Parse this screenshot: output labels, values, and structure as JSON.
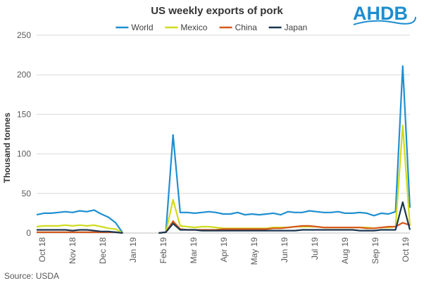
{
  "logo": {
    "text": "AHDB",
    "color": "#1d8dd0"
  },
  "source": "Source: USDA",
  "chart_data": {
    "type": "line",
    "title": "US weekly exports of pork",
    "ylabel": "Thousand tonnes",
    "xlabel": "",
    "ylim": [
      0,
      250
    ],
    "yticks": [
      0,
      50,
      100,
      150,
      200,
      250
    ],
    "grid": true,
    "legend": "top",
    "x_tick_labels": [
      "Oct 18",
      "Nov 18",
      "Dec 18",
      "Jan 19",
      "Feb 19",
      "Mar 19",
      "Apr 19",
      "May 19",
      "Jun 19",
      "Jul 19",
      "Aug 19",
      "Sep 19",
      "Oct 19"
    ],
    "series": [
      {
        "name": "World",
        "color": "#1f8fd1",
        "values": [
          23,
          25,
          25,
          26,
          27,
          26,
          28,
          27,
          29,
          24,
          20,
          13,
          0,
          null,
          null,
          null,
          null,
          0,
          1,
          124,
          26,
          26,
          25,
          26,
          27,
          26,
          24,
          24,
          26,
          23,
          24,
          23,
          24,
          25,
          23,
          27,
          26,
          26,
          28,
          27,
          26,
          26,
          27,
          25,
          25,
          26,
          25,
          22,
          25,
          24,
          27,
          211,
          32
        ]
      },
      {
        "name": "Mexico",
        "color": "#cfdc1e",
        "values": [
          8,
          9,
          9,
          9,
          10,
          9,
          10,
          9,
          10,
          8,
          6,
          5,
          0,
          null,
          null,
          null,
          null,
          0,
          1,
          42,
          9,
          8,
          7,
          8,
          8,
          7,
          6,
          6,
          6,
          6,
          6,
          6,
          6,
          7,
          7,
          7,
          8,
          8,
          8,
          8,
          7,
          7,
          7,
          7,
          7,
          7,
          7,
          6,
          7,
          7,
          8,
          136,
          9
        ]
      },
      {
        "name": "China",
        "color": "#d65a1d",
        "values": [
          1,
          1,
          1,
          1,
          1,
          1,
          1,
          1,
          1,
          1,
          1,
          1,
          0,
          null,
          null,
          null,
          null,
          0,
          1,
          15,
          5,
          4,
          4,
          4,
          4,
          4,
          5,
          5,
          5,
          5,
          5,
          5,
          5,
          6,
          6,
          7,
          8,
          9,
          9,
          8,
          7,
          7,
          7,
          7,
          7,
          7,
          6,
          6,
          7,
          8,
          8,
          13,
          10
        ]
      },
      {
        "name": "Japan",
        "color": "#1b3650",
        "values": [
          4,
          4,
          4,
          4,
          4,
          3,
          4,
          4,
          3,
          2,
          2,
          1,
          0,
          null,
          null,
          null,
          null,
          0,
          1,
          12,
          4,
          4,
          4,
          3,
          3,
          3,
          3,
          3,
          3,
          3,
          3,
          3,
          3,
          3,
          3,
          3,
          3,
          4,
          4,
          4,
          4,
          4,
          4,
          4,
          4,
          3,
          3,
          3,
          4,
          4,
          4,
          39,
          4
        ]
      }
    ]
  }
}
